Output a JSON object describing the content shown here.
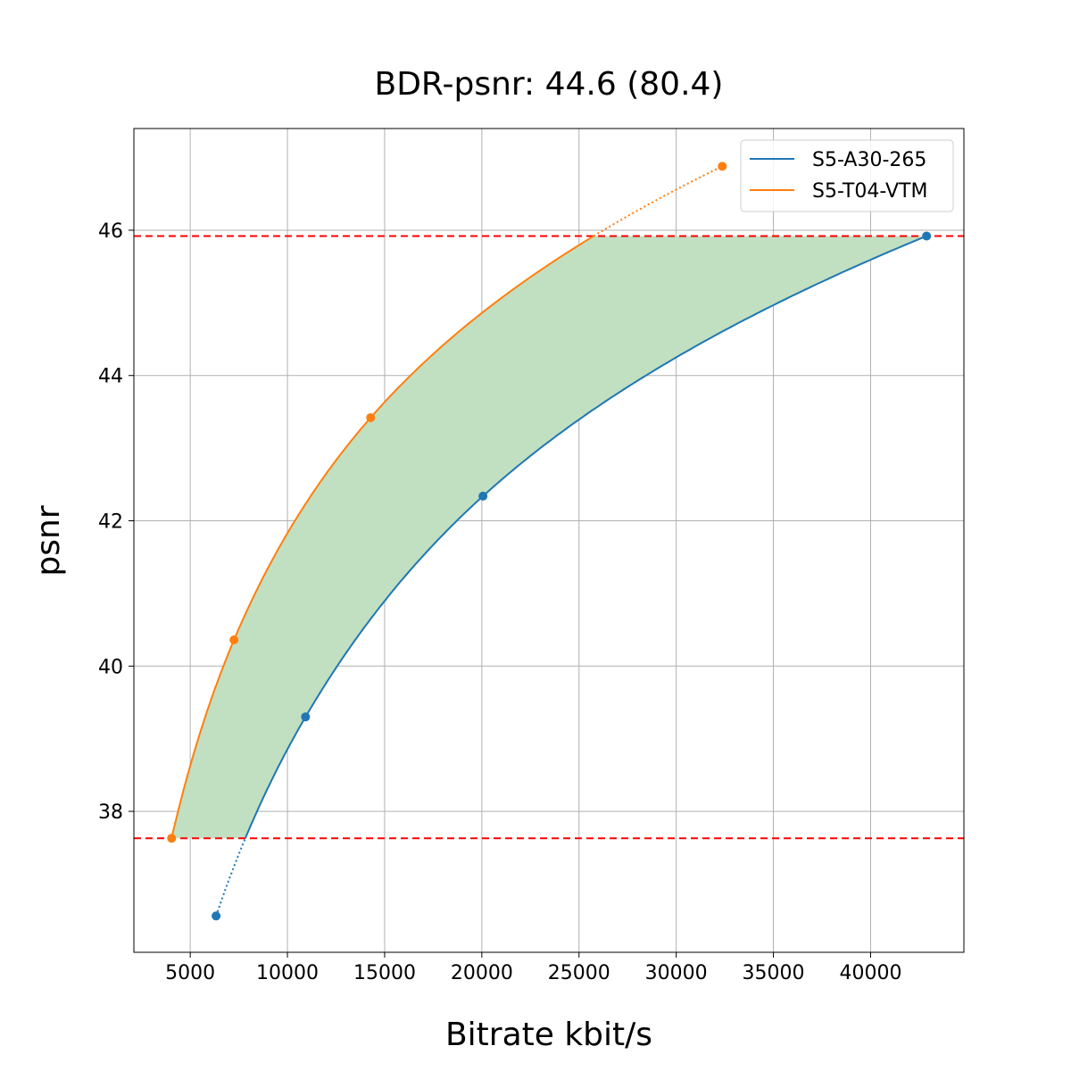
{
  "chart_data": {
    "type": "line",
    "title": "BDR-psnr: 44.6 (80.4)",
    "xlabel": "Bitrate kbit/s",
    "ylabel": "psnr",
    "xlim": [
      2100,
      44800
    ],
    "ylim": [
      36.06,
      47.4
    ],
    "xticks": [
      5000,
      10000,
      15000,
      20000,
      25000,
      30000,
      35000,
      40000
    ],
    "yticks": [
      38,
      40,
      42,
      44,
      46
    ],
    "grid": true,
    "legend_position": "top-right",
    "series": [
      {
        "name": "S5-A30-265",
        "color": "#1f77b4",
        "x": [
          6330,
          10930,
          20060,
          42880
        ],
        "y": [
          36.56,
          39.3,
          42.34,
          45.92
        ]
      },
      {
        "name": "S5-T04-VTM",
        "color": "#ff7f0e",
        "x": [
          4040,
          7250,
          14280,
          32370
        ],
        "y": [
          37.63,
          40.36,
          43.42,
          46.88
        ]
      }
    ],
    "reference_lines": [
      {
        "orientation": "horizontal",
        "y": 45.92,
        "color": "#ff0000",
        "style": "dashed"
      },
      {
        "orientation": "horizontal",
        "y": 37.63,
        "color": "#ff0000",
        "style": "dashed"
      }
    ],
    "fill": {
      "between": [
        "S5-A30-265",
        "S5-T04-VTM"
      ],
      "y_range": [
        37.63,
        45.92
      ],
      "color": "#c1dfc1"
    }
  }
}
